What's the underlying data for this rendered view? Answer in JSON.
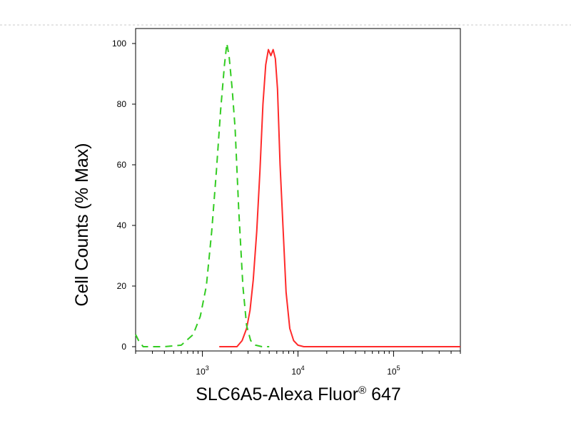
{
  "chart_data": {
    "type": "line",
    "title": "",
    "xlabel": "SLC6A5-Alexa Fluor® 647",
    "xlabel_main": "SLC6A5-Alexa Fluor",
    "xlabel_sup": "®",
    "xlabel_tail": " 647",
    "ylabel": "Cell Counts (% Max)",
    "x_scale": "log",
    "xlim": [
      200,
      500000
    ],
    "ylim": [
      0,
      100
    ],
    "grid": false,
    "legend": "none",
    "y_ticks": [
      "0",
      "20",
      "40",
      "60",
      "80",
      "100"
    ],
    "x_tick_labels": [
      {
        "base": "10",
        "exp": "3",
        "value": 1000
      },
      {
        "base": "10",
        "exp": "4",
        "value": 10000
      },
      {
        "base": "10",
        "exp": "5",
        "value": 100000
      }
    ],
    "series": [
      {
        "color": "#ff2a2a",
        "style": "solid",
        "x": [
          1500,
          2000,
          2300,
          2600,
          2900,
          3150,
          3400,
          3700,
          4000,
          4300,
          4600,
          4900,
          5200,
          5500,
          5800,
          6100,
          6500,
          7000,
          7500,
          8200,
          9000,
          10000,
          11500,
          15000,
          30000,
          100000,
          500000
        ],
        "y": [
          0,
          0,
          0,
          2,
          6,
          12,
          22,
          38,
          58,
          80,
          93,
          98,
          96,
          98,
          95,
          85,
          60,
          38,
          18,
          6,
          2,
          0.5,
          0,
          0,
          0,
          0,
          0
        ]
      },
      {
        "color": "#33cc22",
        "style": "dashed",
        "x": [
          200,
          215,
          240,
          300,
          400,
          600,
          800,
          950,
          1100,
          1250,
          1400,
          1550,
          1700,
          1800,
          1900,
          2050,
          2200,
          2400,
          2650,
          2900,
          3200,
          3600,
          4200,
          5000
        ],
        "y": [
          4,
          2,
          0,
          0,
          0,
          0.5,
          4,
          10,
          20,
          38,
          58,
          78,
          93,
          100,
          96,
          85,
          72,
          45,
          20,
          7,
          2,
          0.5,
          0,
          0
        ]
      }
    ]
  }
}
